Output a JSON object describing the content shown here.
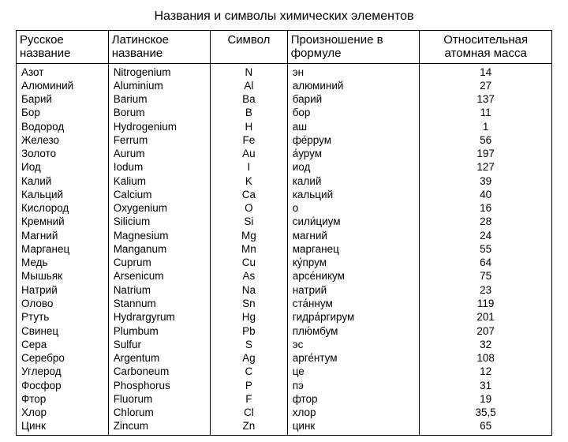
{
  "title": "Названия и символы химических элементов",
  "table": {
    "columns": [
      "Русское название",
      "Латинское название",
      "Символ",
      "Произношение в формуле",
      "Относительная атомная масса"
    ],
    "column_widths_pct": [
      17,
      19,
      14,
      25,
      25
    ],
    "column_align": [
      "left",
      "left",
      "center",
      "left",
      "center"
    ],
    "rows": [
      [
        "Азот",
        "Nitrogenium",
        "N",
        "эн",
        "14"
      ],
      [
        "Алюминий",
        "Aluminium",
        "Al",
        "алюминий",
        "27"
      ],
      [
        "Барий",
        "Barium",
        "Ba",
        "барий",
        "137"
      ],
      [
        "Бор",
        "Borum",
        "B",
        "бор",
        "11"
      ],
      [
        "Водород",
        "Hydrogenium",
        "H",
        "аш",
        "1"
      ],
      [
        "Железо",
        "Ferrum",
        "Fe",
        "фе́ррум",
        "56"
      ],
      [
        "Золото",
        "Aurum",
        "Au",
        "а́урум",
        "197"
      ],
      [
        "Иод",
        "Iodum",
        "I",
        "иод",
        "127"
      ],
      [
        "Калий",
        "Kalium",
        "K",
        "калий",
        "39"
      ],
      [
        "Кальций",
        "Calcium",
        "Ca",
        "кальций",
        "40"
      ],
      [
        "Кислород",
        "Oxygenium",
        "O",
        "о",
        "16"
      ],
      [
        "Кремний",
        "Silicium",
        "Si",
        "сили́циум",
        "28"
      ],
      [
        "Магний",
        "Magnesium",
        "Mg",
        "магний",
        "24"
      ],
      [
        "Марганец",
        "Manganum",
        "Mn",
        "марганец",
        "55"
      ],
      [
        "Медь",
        "Cuprum",
        "Cu",
        "ку́прум",
        "64"
      ],
      [
        "Мышьяк",
        "Arsenicum",
        "As",
        "арсе́никум",
        "75"
      ],
      [
        "Натрий",
        "Natrium",
        "Na",
        "натрий",
        "23"
      ],
      [
        "Олово",
        "Stannum",
        "Sn",
        "ста́ннум",
        "119"
      ],
      [
        "Ртуть",
        "Hydrargyrum",
        "Hg",
        "гидра́ргирум",
        "201"
      ],
      [
        "Свинец",
        "Plumbum",
        "Pb",
        "плю́мбум",
        "207"
      ],
      [
        "Сера",
        "Sulfur",
        "S",
        "эс",
        "32"
      ],
      [
        "Серебро",
        "Argentum",
        "Ag",
        "арге́нтум",
        "108"
      ],
      [
        "Углерод",
        "Carboneum",
        "C",
        "це",
        "12"
      ],
      [
        "Фосфор",
        "Phosphorus",
        "P",
        "пэ",
        "31"
      ],
      [
        "Фтор",
        "Fluorum",
        "F",
        "фтор",
        "19"
      ],
      [
        "Хлор",
        "Chlorum",
        "Cl",
        "хлор",
        "35,5"
      ],
      [
        "Цинк",
        "Zincum",
        "Zn",
        "цинк",
        "65"
      ]
    ]
  },
  "style": {
    "background_color": "#ffffff",
    "text_color": "#000000",
    "border_color": "#000000",
    "title_fontsize": 16,
    "header_fontsize": 15,
    "cell_fontsize": 13.5,
    "font_family": "Arial"
  }
}
